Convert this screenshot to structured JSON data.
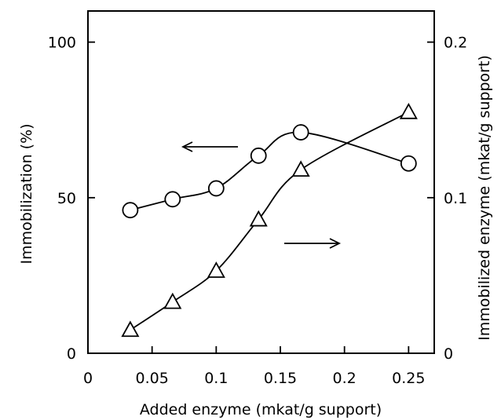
{
  "chart_data": {
    "type": "line",
    "xlabel": "Added enzyme (mkat/g support)",
    "ylabel_left": "Immobilization (%)",
    "ylabel_right": "Immobilized enzyme (mkat/g support)",
    "xlim": [
      0,
      0.27
    ],
    "ylim_left": [
      0,
      110
    ],
    "ylim_right": [
      0,
      0.22
    ],
    "x_ticks": [
      0,
      0.05,
      0.1,
      0.15,
      0.2,
      0.25
    ],
    "x_tick_labels": [
      "0",
      "0.05",
      "0.1",
      "0.15",
      "0.2",
      "0.25"
    ],
    "y_left_ticks": [
      0,
      50,
      100
    ],
    "y_left_tick_labels": [
      "0",
      "50",
      "100"
    ],
    "y_right_ticks": [
      0,
      0.1,
      0.2
    ],
    "y_right_tick_labels": [
      "0",
      "0.1",
      "0.2"
    ],
    "grid": false,
    "series": [
      {
        "marker": "circle",
        "axis": "left",
        "x": [
          0.033,
          0.066,
          0.1,
          0.133,
          0.166,
          0.25
        ],
        "y": [
          46,
          49.5,
          53,
          63.5,
          71,
          61
        ],
        "annotation_arrow": "left"
      },
      {
        "marker": "triangle",
        "axis": "right",
        "x": [
          0.033,
          0.066,
          0.1,
          0.133,
          0.166,
          0.25
        ],
        "y": [
          0.015,
          0.033,
          0.053,
          0.086,
          0.118,
          0.155
        ],
        "annotation_arrow": "right"
      }
    ]
  }
}
